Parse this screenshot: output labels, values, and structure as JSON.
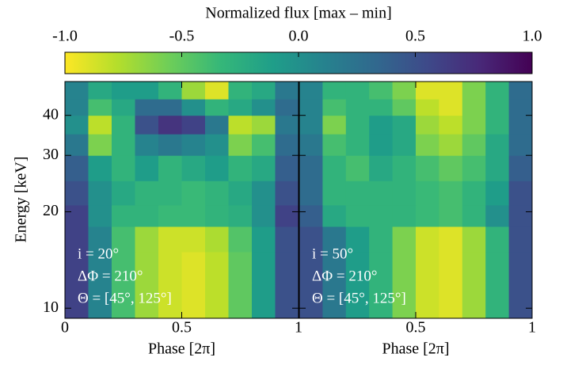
{
  "chart_data": {
    "type": "heatmap",
    "title": "Normalized flux [max – min]",
    "colorbar": {
      "lim": [
        -1,
        1
      ],
      "ticks": [
        {
          "value": -1,
          "label": "-1.0"
        },
        -0.5,
        {
          "value": 0,
          "label": "0.0"
        },
        0.5,
        {
          "value": 1,
          "label": "1.0"
        }
      ]
    },
    "colormap": [
      "#fde725",
      "#b5de2b",
      "#6ece58",
      "#35b779",
      "#1f9e89",
      "#26828e",
      "#31688e",
      "#3e4989",
      "#482878",
      "#440154"
    ],
    "y_label": "Energy [keV]",
    "ylim": [
      9.3,
      51
    ],
    "yticks": [
      10,
      20,
      30,
      40
    ],
    "log_y": true,
    "energy_bins": [
      9.3,
      12,
      15,
      18,
      21,
      25,
      30,
      35,
      40,
      45,
      51
    ],
    "panels": [
      {
        "x_label": "Phase [2π]",
        "xlim": [
          0,
          1
        ],
        "xticks": [
          0,
          0.5,
          1
        ],
        "phase_bins": [
          0,
          0.1,
          0.2,
          0.3,
          0.4,
          0.5,
          0.6,
          0.7,
          0.8,
          0.9,
          1
        ],
        "annotations": [
          "i = 20°",
          "ΔΦ = 210°",
          "Θ = [45°, 125°]"
        ],
        "values": [
          [
            0.6,
            0.1,
            -0.4,
            -0.7,
            -0.85,
            -0.9,
            -0.8,
            -0.5,
            -0.1,
            0.5
          ],
          [
            0.6,
            0.1,
            -0.4,
            -0.7,
            -0.85,
            -0.9,
            -0.8,
            -0.5,
            -0.1,
            0.5
          ],
          [
            0.6,
            0.1,
            -0.4,
            -0.7,
            -0.85,
            -0.85,
            -0.75,
            -0.45,
            -0.1,
            0.5
          ],
          [
            0.6,
            0.0,
            -0.3,
            -0.3,
            -0.35,
            -0.35,
            -0.3,
            -0.25,
            0.0,
            0.6
          ],
          [
            0.5,
            0.0,
            -0.2,
            -0.3,
            -0.3,
            -0.35,
            -0.3,
            -0.2,
            0.0,
            0.5
          ],
          [
            0.4,
            -0.1,
            -0.3,
            -0.1,
            -0.3,
            -0.2,
            -0.1,
            -0.3,
            -0.2,
            0.4
          ],
          [
            0.2,
            -0.6,
            -0.3,
            0.1,
            0.2,
            0.1,
            0.0,
            -0.6,
            -0.4,
            0.3
          ],
          [
            0.0,
            -0.8,
            -0.3,
            0.5,
            0.7,
            0.6,
            0.2,
            -0.8,
            -0.7,
            0.2
          ],
          [
            0.1,
            -0.4,
            -0.2,
            0.3,
            0.3,
            0.0,
            -0.3,
            -0.2,
            0.0,
            0.3
          ],
          [
            0.1,
            -0.2,
            -0.1,
            -0.1,
            -0.3,
            -0.7,
            -0.9,
            -0.3,
            -0.2,
            0.2
          ]
        ]
      },
      {
        "x_label": "Phase [2π]",
        "xlim": [
          0,
          1
        ],
        "xticks": [
          0,
          0.5,
          1
        ],
        "phase_bins": [
          0,
          0.1,
          0.2,
          0.3,
          0.4,
          0.5,
          0.6,
          0.7,
          0.8,
          0.9,
          1
        ],
        "annotations": [
          "i = 50°",
          "ΔΦ = 210°",
          "Θ = [45°, 125°]"
        ],
        "values": [
          [
            0.5,
            0.2,
            -0.1,
            -0.3,
            -0.6,
            -0.85,
            -0.9,
            -0.7,
            -0.3,
            0.5
          ],
          [
            0.5,
            0.2,
            -0.1,
            -0.3,
            -0.6,
            -0.85,
            -0.9,
            -0.7,
            -0.3,
            0.5
          ],
          [
            0.5,
            0.2,
            -0.1,
            -0.3,
            -0.6,
            -0.85,
            -0.9,
            -0.7,
            -0.3,
            0.5
          ],
          [
            0.4,
            -0.2,
            -0.3,
            -0.3,
            -0.3,
            -0.35,
            -0.4,
            -0.3,
            0.0,
            0.5
          ],
          [
            0.3,
            -0.3,
            -0.3,
            -0.3,
            -0.3,
            -0.35,
            -0.4,
            -0.3,
            -0.1,
            0.5
          ],
          [
            0.3,
            -0.3,
            -0.4,
            -0.2,
            -0.3,
            -0.4,
            -0.5,
            -0.4,
            -0.2,
            0.4
          ],
          [
            0.2,
            -0.4,
            -0.3,
            -0.1,
            -0.2,
            -0.6,
            -0.7,
            -0.5,
            -0.2,
            0.3
          ],
          [
            0.1,
            -0.6,
            -0.3,
            -0.1,
            -0.2,
            -0.7,
            -0.8,
            -0.6,
            -0.3,
            0.3
          ],
          [
            0.1,
            -0.4,
            -0.3,
            -0.3,
            -0.5,
            -0.8,
            -0.9,
            -0.6,
            -0.3,
            0.3
          ],
          [
            0.1,
            -0.3,
            -0.3,
            -0.4,
            -0.6,
            -0.9,
            -0.9,
            -0.6,
            -0.3,
            0.3
          ]
        ]
      }
    ]
  }
}
